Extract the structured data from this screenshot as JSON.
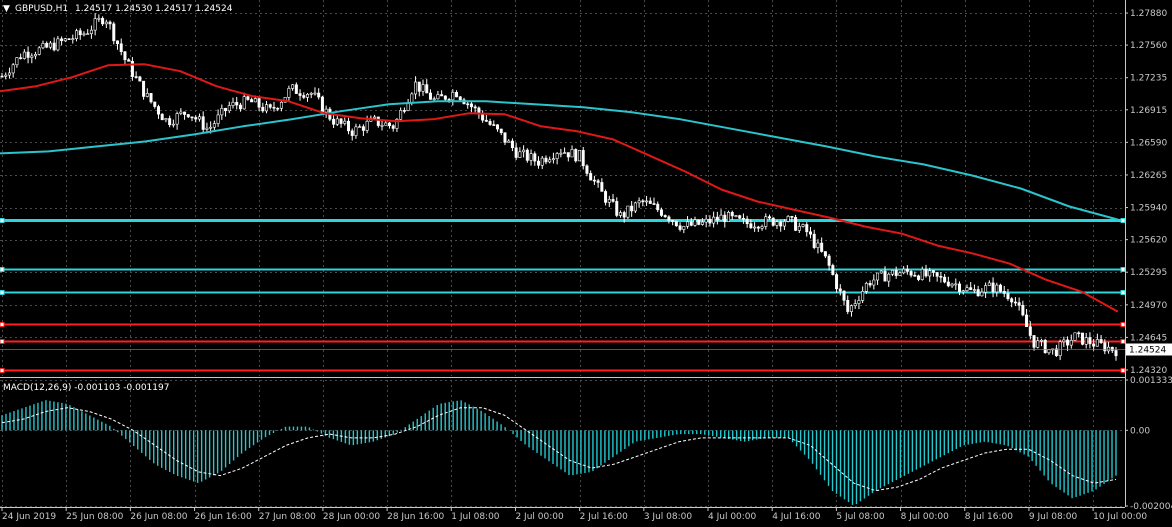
{
  "colors": {
    "background": "#000000",
    "grid": "#4a4a4a",
    "axis": "#c8c8c8",
    "candle": "#ffffff",
    "ma_fast": "#e01818",
    "ma_slow": "#2cc4cc",
    "support_cyan": "#2cd4dc",
    "support_red": "#ff2020",
    "macd_hist": "#20c8d0",
    "macd_signal": "#ffffff",
    "price_tag_bg": "#ffffff",
    "price_tag_text": "#000000"
  },
  "header": {
    "arrow": "▼",
    "symbol": "GBPUSD,H1",
    "ohlc": "1.24517 1.24530 1.24517 1.24524"
  },
  "price_axis": {
    "ticks": [
      "1.27880",
      "1.27560",
      "1.27235",
      "1.26915",
      "1.26590",
      "1.26265",
      "1.25940",
      "1.25620",
      "1.25295",
      "1.24970",
      "1.24645",
      "1.24320"
    ],
    "current_price": "1.24524"
  },
  "macd_panel": {
    "title": "MACD(12,26,9) -0.001103 -0.001197",
    "ticks": [
      "0.001333",
      "0.00",
      "-0.002004"
    ]
  },
  "time_axis": {
    "labels": [
      "24 Jun 2019",
      "25 Jun 08:00",
      "26 Jun 08:00",
      "26 Jun 16:00",
      "27 Jun 08:00",
      "28 Jun 00:00",
      "28 Jun 16:00",
      "1 Jul 08:00",
      "2 Jul 00:00",
      "2 Jul 16:00",
      "3 Jul 08:00",
      "4 Jul 00:00",
      "4 Jul 16:00",
      "5 Jul 08:00",
      "8 Jul 00:00",
      "8 Jul 16:00",
      "9 Jul 08:00",
      "10 Jul 00:00"
    ]
  },
  "chart_data": {
    "type": "candlestick",
    "symbol": "GBPUSD",
    "timeframe": "H1",
    "ylim": [
      1.2426,
      1.2797
    ],
    "horizontal_levels": [
      {
        "price": 1.2582,
        "color": "cyan"
      },
      {
        "price": 1.2533,
        "color": "cyan"
      },
      {
        "price": 1.251,
        "color": "cyan"
      },
      {
        "price": 1.2478,
        "color": "red"
      },
      {
        "price": 1.2461,
        "color": "red"
      },
      {
        "price": 1.2432,
        "color": "red"
      }
    ],
    "close_path": [
      1.2725,
      1.2748,
      1.2752,
      1.276,
      1.2768,
      1.2785,
      1.274,
      1.2705,
      1.268,
      1.269,
      1.2672,
      1.2695,
      1.27,
      1.269,
      1.2712,
      1.2708,
      1.2682,
      1.267,
      1.268,
      1.2675,
      1.2718,
      1.27,
      1.271,
      1.269,
      1.267,
      1.2648,
      1.264,
      1.2652,
      1.2645,
      1.261,
      1.2585,
      1.26,
      1.259,
      1.2575,
      1.2578,
      1.2585,
      1.2578,
      1.258,
      1.2582,
      1.257,
      1.254,
      1.249,
      1.252,
      1.2528,
      1.253,
      1.2525,
      1.252,
      1.251,
      1.2515,
      1.2505,
      1.246,
      1.245,
      1.2465,
      1.2458,
      1.2452
    ],
    "ma_fast": [
      1.271,
      1.2715,
      1.2724,
      1.2736,
      1.2737,
      1.273,
      1.2715,
      1.2705,
      1.27,
      1.2688,
      1.2683,
      1.268,
      1.2682,
      1.2688,
      1.2687,
      1.2675,
      1.267,
      1.2662,
      1.2646,
      1.263,
      1.2612,
      1.26,
      1.2592,
      1.2584,
      1.2575,
      1.2568,
      1.2556,
      1.2548,
      1.2538,
      1.2522,
      1.251,
      1.249
    ],
    "ma_slow": [
      1.2648,
      1.265,
      1.2655,
      1.266,
      1.2667,
      1.2675,
      1.2682,
      1.269,
      1.2697,
      1.27,
      1.27,
      1.2697,
      1.2694,
      1.2689,
      1.2682,
      1.2673,
      1.2664,
      1.2655,
      1.2645,
      1.2637,
      1.2626,
      1.2613,
      1.2595,
      1.2582
    ],
    "macd_hist": [
      0.0004,
      0.0006,
      0.0008,
      0.0007,
      0.0004,
      0.0001,
      -0.0004,
      -0.0009,
      -0.0012,
      -0.0014,
      -0.0011,
      -0.0006,
      -0.0002,
      0.0001,
      0.0001,
      -0.0002,
      -0.0004,
      -0.0003,
      -0.0001,
      0.0003,
      0.0007,
      0.0008,
      0.0005,
      0.0001,
      -0.0004,
      -0.0008,
      -0.0012,
      -0.0011,
      -0.0007,
      -0.0003,
      -0.0002,
      -0.0001,
      -0.0001,
      -0.0002,
      -0.0003,
      -0.0002,
      -0.0002,
      -0.0008,
      -0.0016,
      -0.002,
      -0.0016,
      -0.0013,
      -0.001,
      -0.0007,
      -0.0004,
      -0.0003,
      -0.0004,
      -0.0007,
      -0.0014,
      -0.0018,
      -0.0016,
      -0.0012
    ],
    "macd_signal": [
      0.0002,
      0.0003,
      0.0005,
      0.0006,
      0.0005,
      0.0003,
      0.0,
      -0.0004,
      -0.0008,
      -0.0011,
      -0.0012,
      -0.001,
      -0.0007,
      -0.0004,
      -0.0002,
      -0.0001,
      -0.0002,
      -0.0002,
      -0.0001,
      0.0001,
      0.0004,
      0.0006,
      0.0006,
      0.0004,
      0.0,
      -0.0004,
      -0.0008,
      -0.001,
      -0.0009,
      -0.0007,
      -0.0005,
      -0.0003,
      -0.0002,
      -0.0002,
      -0.0002,
      -0.0002,
      -0.0002,
      -0.0004,
      -0.0009,
      -0.0014,
      -0.0016,
      -0.0015,
      -0.0013,
      -0.001,
      -0.0008,
      -0.0006,
      -0.0005,
      -0.0005,
      -0.0008,
      -0.0012,
      -0.0014,
      -0.0013
    ],
    "macd_ylim": [
      -0.002004,
      0.001333
    ]
  }
}
